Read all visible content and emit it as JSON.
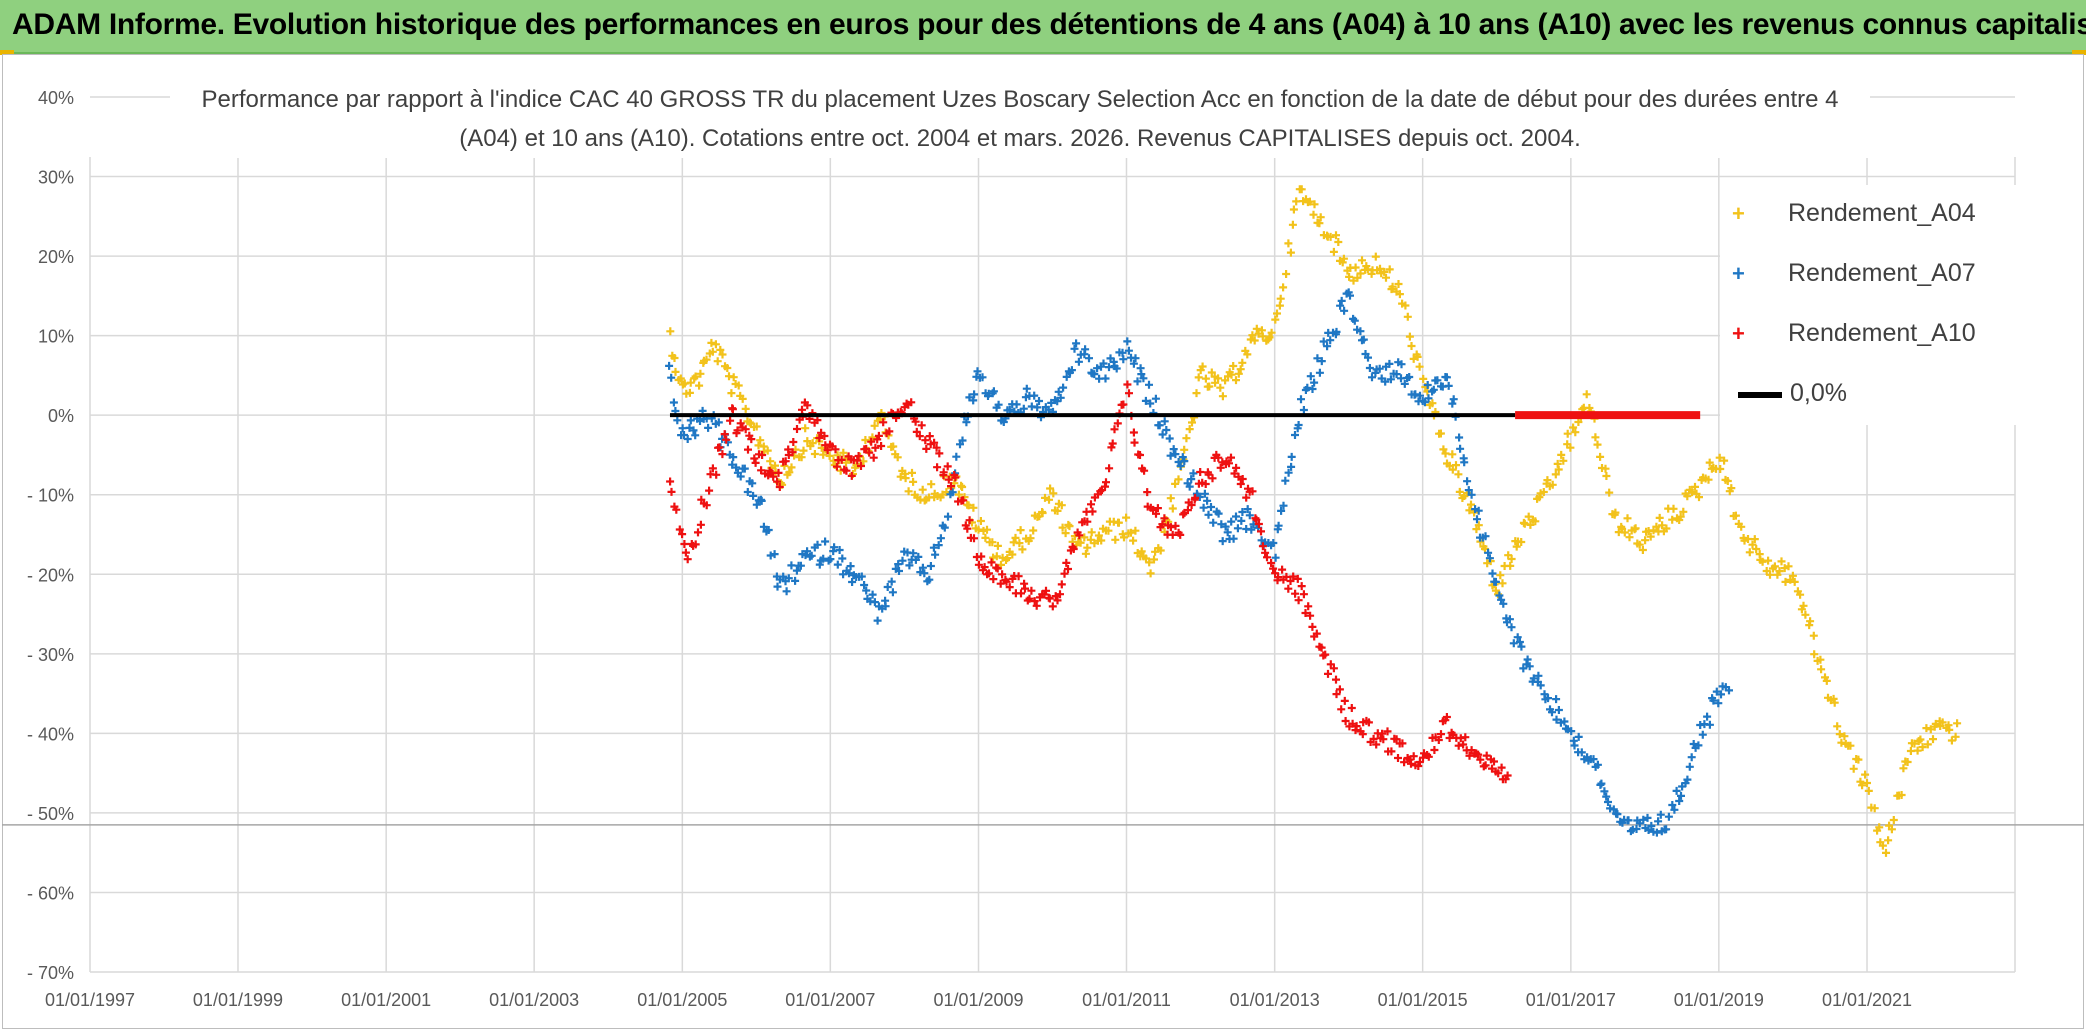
{
  "banner": {
    "title": "ADAM Informe. Evolution historique des performances en euros pour des détentions de 4 ans (A04) à 10 ans (A10) avec les revenus connus capitalisés"
  },
  "colors": {
    "banner": "#8fd07f",
    "a04": "#f2c21b",
    "a07": "#1f77c4",
    "a10": "#ee1111",
    "zero": "#000000"
  },
  "chart_data": {
    "type": "scatter",
    "title": "Performance par rapport à l'indice CAC 40 GROSS TR du placement Uzes Boscary Selection Acc en fonction de la date de début pour des durées entre 4 (A04) et 10 ans (A10). Cotations entre oct. 2004 et mars. 2026. Revenus CAPITALISES depuis oct. 2004.",
    "xlabel": "",
    "ylabel": "",
    "x_range": [
      "1997-01-01",
      "2023-01-01"
    ],
    "ylim": [
      -70,
      40
    ],
    "y_tick_values": [
      40,
      30,
      20,
      10,
      0,
      -10,
      -20,
      -30,
      -40,
      -50,
      -60,
      -70
    ],
    "y_tick_labels": [
      "40%",
      "30%",
      "20%",
      "10%",
      "0%",
      "- 10%",
      "- 20%",
      "- 30%",
      "- 40%",
      "- 50%",
      "- 60%",
      "- 70%"
    ],
    "x_tick_values": [
      "1997-01-01",
      "1999-01-01",
      "2001-01-01",
      "2003-01-01",
      "2005-01-01",
      "2007-01-01",
      "2009-01-01",
      "2011-01-01",
      "2013-01-01",
      "2015-01-01",
      "2017-01-01",
      "2019-01-01",
      "2021-01-01"
    ],
    "x_tick_labels": [
      "01/01/1997",
      "01/01/1999",
      "01/01/2001",
      "01/01/2003",
      "01/01/2005",
      "01/01/2007",
      "01/01/2009",
      "01/01/2011",
      "01/01/2013",
      "01/01/2015",
      "01/01/2017",
      "01/01/2019",
      "01/01/2021"
    ],
    "grid": true,
    "legend_position": "top-right",
    "series": [
      {
        "name": "Rendement_A04",
        "key": "a04",
        "marker": "+",
        "points": [
          [
            "2004-11-01",
            10
          ],
          [
            "2005-01-01",
            3
          ],
          [
            "2005-04-01",
            5
          ],
          [
            "2005-06-01",
            9
          ],
          [
            "2005-09-01",
            4
          ],
          [
            "2006-01-01",
            -2
          ],
          [
            "2006-05-01",
            -8
          ],
          [
            "2006-09-01",
            -3
          ],
          [
            "2007-01-01",
            -5
          ],
          [
            "2007-05-01",
            -7
          ],
          [
            "2007-09-01",
            0
          ],
          [
            "2008-01-01",
            -8
          ],
          [
            "2008-05-01",
            -10
          ],
          [
            "2008-09-01",
            -8
          ],
          [
            "2009-01-01",
            -14
          ],
          [
            "2009-05-01",
            -18
          ],
          [
            "2009-09-01",
            -15
          ],
          [
            "2010-01-01",
            -10
          ],
          [
            "2010-05-01",
            -17
          ],
          [
            "2010-09-01",
            -15
          ],
          [
            "2011-01-01",
            -14
          ],
          [
            "2011-05-01",
            -19
          ],
          [
            "2011-09-01",
            -10
          ],
          [
            "2012-01-01",
            5
          ],
          [
            "2012-05-01",
            3
          ],
          [
            "2012-09-01",
            9
          ],
          [
            "2013-01-01",
            11
          ],
          [
            "2013-05-01",
            28
          ],
          [
            "2013-09-01",
            24
          ],
          [
            "2014-01-01",
            18
          ],
          [
            "2014-05-01",
            19
          ],
          [
            "2014-09-01",
            16
          ],
          [
            "2015-01-01",
            4
          ],
          [
            "2015-05-01",
            -5
          ],
          [
            "2015-09-01",
            -12
          ],
          [
            "2016-01-01",
            -22
          ],
          [
            "2016-05-01",
            -15
          ],
          [
            "2016-09-01",
            -10
          ],
          [
            "2017-01-01",
            -3
          ],
          [
            "2017-04-01",
            2
          ],
          [
            "2017-08-01",
            -13
          ],
          [
            "2018-01-01",
            -16
          ],
          [
            "2018-05-01",
            -13
          ],
          [
            "2018-09-01",
            -10
          ],
          [
            "2019-01-01",
            -5
          ],
          [
            "2019-05-01",
            -15
          ],
          [
            "2019-09-01",
            -19
          ],
          [
            "2020-01-01",
            -20
          ],
          [
            "2020-05-01",
            -30
          ],
          [
            "2020-09-01",
            -40
          ],
          [
            "2021-01-01",
            -47
          ],
          [
            "2021-04-01",
            -55
          ],
          [
            "2021-08-01",
            -42
          ],
          [
            "2022-01-01",
            -39
          ],
          [
            "2022-04-01",
            -40
          ]
        ]
      },
      {
        "name": "Rendement_A07",
        "key": "a07",
        "marker": "+",
        "points": [
          [
            "2004-11-01",
            5
          ],
          [
            "2005-01-01",
            -3
          ],
          [
            "2005-05-01",
            0
          ],
          [
            "2005-09-01",
            -5
          ],
          [
            "2006-02-01",
            -12
          ],
          [
            "2006-05-01",
            -22
          ],
          [
            "2006-09-01",
            -18
          ],
          [
            "2007-01-01",
            -17
          ],
          [
            "2007-05-01",
            -20
          ],
          [
            "2007-09-01",
            -25
          ],
          [
            "2008-01-01",
            -18
          ],
          [
            "2008-05-01",
            -20
          ],
          [
            "2008-08-01",
            -12
          ],
          [
            "2008-11-01",
            0
          ],
          [
            "2009-01-01",
            5
          ],
          [
            "2009-05-01",
            0
          ],
          [
            "2009-09-01",
            2
          ],
          [
            "2010-01-01",
            0
          ],
          [
            "2010-05-01",
            8
          ],
          [
            "2010-09-01",
            5
          ],
          [
            "2011-01-01",
            8
          ],
          [
            "2011-05-01",
            2
          ],
          [
            "2011-09-01",
            -5
          ],
          [
            "2012-01-01",
            -10
          ],
          [
            "2012-05-01",
            -15
          ],
          [
            "2012-09-01",
            -13
          ],
          [
            "2013-01-01",
            -17
          ],
          [
            "2013-05-01",
            0
          ],
          [
            "2013-09-01",
            8
          ],
          [
            "2014-01-01",
            15
          ],
          [
            "2014-05-01",
            5
          ],
          [
            "2014-09-01",
            6
          ],
          [
            "2015-01-01",
            2
          ],
          [
            "2015-05-01",
            5
          ],
          [
            "2015-09-01",
            -10
          ],
          [
            "2016-01-01",
            -22
          ],
          [
            "2016-05-01",
            -30
          ],
          [
            "2016-09-01",
            -35
          ],
          [
            "2017-01-01",
            -40
          ],
          [
            "2017-05-01",
            -44
          ],
          [
            "2017-09-01",
            -52
          ],
          [
            "2018-01-01",
            -52
          ],
          [
            "2018-05-01",
            -51
          ],
          [
            "2018-09-01",
            -42
          ],
          [
            "2019-01-01",
            -35
          ],
          [
            "2019-03-01",
            -33
          ]
        ]
      },
      {
        "name": "Rendement_A10",
        "key": "a10",
        "marker": "+",
        "points": [
          [
            "2004-11-01",
            -8
          ],
          [
            "2005-02-01",
            -18
          ],
          [
            "2005-05-01",
            -10
          ],
          [
            "2005-09-01",
            0
          ],
          [
            "2006-01-01",
            -5
          ],
          [
            "2006-05-01",
            -8
          ],
          [
            "2006-09-01",
            2
          ],
          [
            "2007-01-01",
            -5
          ],
          [
            "2007-05-01",
            -7
          ],
          [
            "2007-09-01",
            -3
          ],
          [
            "2008-01-01",
            2
          ],
          [
            "2008-05-01",
            -4
          ],
          [
            "2008-09-01",
            -8
          ],
          [
            "2009-01-01",
            -18
          ],
          [
            "2009-05-01",
            -20
          ],
          [
            "2009-09-01",
            -22
          ],
          [
            "2010-01-01",
            -24
          ],
          [
            "2010-05-01",
            -15
          ],
          [
            "2010-09-01",
            -10
          ],
          [
            "2011-01-01",
            3
          ],
          [
            "2011-05-01",
            -12
          ],
          [
            "2011-09-01",
            -15
          ],
          [
            "2012-01-01",
            -8
          ],
          [
            "2012-05-01",
            -5
          ],
          [
            "2012-09-01",
            -10
          ],
          [
            "2013-01-01",
            -20
          ],
          [
            "2013-05-01",
            -22
          ],
          [
            "2013-09-01",
            -30
          ],
          [
            "2014-01-01",
            -38
          ],
          [
            "2014-05-01",
            -40
          ],
          [
            "2014-09-01",
            -42
          ],
          [
            "2015-01-01",
            -43
          ],
          [
            "2015-05-01",
            -39
          ],
          [
            "2015-09-01",
            -42
          ],
          [
            "2016-01-01",
            -45
          ],
          [
            "2016-03-01",
            -47
          ]
        ]
      }
    ],
    "zero_line": {
      "name": "0,0%",
      "value": 0,
      "x_start": "2004-11-01",
      "x_end": "2016-04-01"
    },
    "a10_zero_segment": {
      "x_start": "2016-04-01",
      "x_end": "2018-10-01",
      "value": 0
    }
  }
}
